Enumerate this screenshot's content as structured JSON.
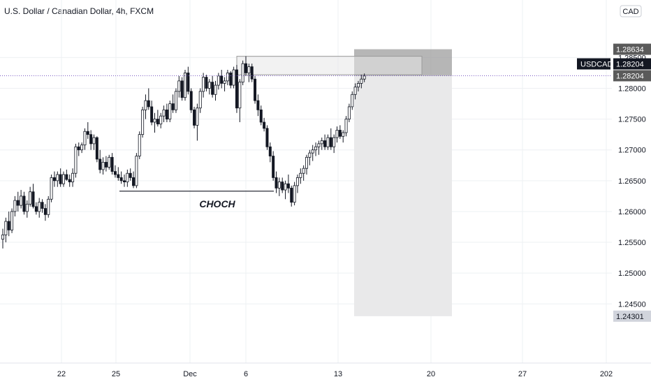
{
  "header": {
    "title": "U.S. Dollar / Canadian Dollar, 4h, FXCM"
  },
  "currency_badge": "CAD",
  "symbol_label": "USDCAD",
  "price_labels": {
    "symbol_price": "1.28204",
    "current": "1.28204",
    "stop": "1.28634",
    "target": "1.24301"
  },
  "colors": {
    "up": "#131722",
    "down": "#131722",
    "upFill": "#ffffff",
    "downFill": "#131722",
    "priceLine": "#7b5cc4",
    "grid": "#eef0f3",
    "stopZone": "#9e9e9e",
    "targetZone": "#e9e9ea",
    "fvgZone": "#e8e8e8"
  },
  "annotation": {
    "label": "CHOCH",
    "price": 1.2633
  },
  "chart_data": {
    "type": "candlestick",
    "title": "U.S. Dollar / Canadian Dollar, 4h, FXCM",
    "symbol": "USDCAD",
    "timeframe": "4h",
    "y_ticks": [
      1.245,
      1.25,
      1.255,
      1.26,
      1.265,
      1.27,
      1.275,
      1.28,
      1.285
    ],
    "y_tick_labels": [
      "1.24500",
      "1.25000",
      "1.25500",
      "1.26000",
      "1.26500",
      "1.27000",
      "1.27500",
      "1.28000",
      "1.28500"
    ],
    "x_ticks": [
      "22",
      "25",
      "Dec",
      "6",
      "13",
      "20",
      "27",
      "202"
    ],
    "ylim": [
      1.2388,
      1.2898
    ],
    "last_price": 1.28204,
    "position": {
      "type": "short",
      "entry": 1.28204,
      "stop": 1.28634,
      "target": 1.24301
    },
    "supply_zone": {
      "top": 1.2852,
      "bottom": 1.2822
    },
    "candles": [
      [
        1.2555,
        1.2572,
        1.254,
        1.2562
      ],
      [
        1.2562,
        1.259,
        1.255,
        1.2584
      ],
      [
        1.2584,
        1.26,
        1.256,
        1.257
      ],
      [
        1.257,
        1.2605,
        1.2565,
        1.26
      ],
      [
        1.26,
        1.2625,
        1.2592,
        1.2618
      ],
      [
        1.2618,
        1.2632,
        1.26,
        1.261
      ],
      [
        1.261,
        1.2635,
        1.2605,
        1.2625
      ],
      [
        1.2625,
        1.2632,
        1.2595,
        1.26
      ],
      [
        1.26,
        1.2618,
        1.259,
        1.2612
      ],
      [
        1.2612,
        1.264,
        1.2608,
        1.2632
      ],
      [
        1.2632,
        1.2645,
        1.2605,
        1.2608
      ],
      [
        1.2608,
        1.2615,
        1.2595,
        1.26
      ],
      [
        1.26,
        1.2622,
        1.259,
        1.2615
      ],
      [
        1.2615,
        1.262,
        1.2598,
        1.2605
      ],
      [
        1.2605,
        1.2612,
        1.2585,
        1.2595
      ],
      [
        1.2595,
        1.2625,
        1.259,
        1.262
      ],
      [
        1.262,
        1.266,
        1.2615,
        1.2655
      ],
      [
        1.2655,
        1.2665,
        1.264,
        1.265
      ],
      [
        1.265,
        1.2665,
        1.264,
        1.266
      ],
      [
        1.266,
        1.267,
        1.264,
        1.2645
      ],
      [
        1.2645,
        1.2665,
        1.264,
        1.266
      ],
      [
        1.266,
        1.2668,
        1.265,
        1.2652
      ],
      [
        1.2652,
        1.266,
        1.264,
        1.2648
      ],
      [
        1.2648,
        1.267,
        1.264,
        1.2662
      ],
      [
        1.2662,
        1.271,
        1.2655,
        1.2705
      ],
      [
        1.2705,
        1.2712,
        1.269,
        1.27
      ],
      [
        1.27,
        1.2712,
        1.2695,
        1.2708
      ],
      [
        1.2708,
        1.2735,
        1.27,
        1.273
      ],
      [
        1.273,
        1.2745,
        1.2718,
        1.2725
      ],
      [
        1.2725,
        1.2732,
        1.27,
        1.271
      ],
      [
        1.271,
        1.2725,
        1.27,
        1.272
      ],
      [
        1.272,
        1.2722,
        1.268,
        1.2685
      ],
      [
        1.2685,
        1.27,
        1.2662,
        1.2668
      ],
      [
        1.2668,
        1.2688,
        1.266,
        1.268
      ],
      [
        1.268,
        1.269,
        1.2665,
        1.2672
      ],
      [
        1.2672,
        1.2692,
        1.2668,
        1.2688
      ],
      [
        1.2688,
        1.2695,
        1.266,
        1.2665
      ],
      [
        1.2665,
        1.2675,
        1.2655,
        1.266
      ],
      [
        1.266,
        1.2672,
        1.265,
        1.2655
      ],
      [
        1.2655,
        1.2665,
        1.2645,
        1.265
      ],
      [
        1.265,
        1.266,
        1.264,
        1.2648
      ],
      [
        1.2648,
        1.2668,
        1.264,
        1.2662
      ],
      [
        1.2662,
        1.267,
        1.265,
        1.2655
      ],
      [
        1.2655,
        1.2665,
        1.2638,
        1.2642
      ],
      [
        1.2642,
        1.2695,
        1.2638,
        1.269
      ],
      [
        1.269,
        1.273,
        1.2685,
        1.2725
      ],
      [
        1.2725,
        1.277,
        1.272,
        1.2765
      ],
      [
        1.2765,
        1.279,
        1.275,
        1.278
      ],
      [
        1.278,
        1.28,
        1.2765,
        1.277
      ],
      [
        1.277,
        1.278,
        1.274,
        1.2745
      ],
      [
        1.2745,
        1.276,
        1.2728,
        1.275
      ],
      [
        1.275,
        1.2765,
        1.2738,
        1.2742
      ],
      [
        1.2742,
        1.276,
        1.2735,
        1.2755
      ],
      [
        1.2755,
        1.2772,
        1.2745,
        1.2765
      ],
      [
        1.2765,
        1.2775,
        1.2745,
        1.275
      ],
      [
        1.275,
        1.278,
        1.2745,
        1.2775
      ],
      [
        1.2775,
        1.279,
        1.276,
        1.2765
      ],
      [
        1.2765,
        1.28,
        1.276,
        1.2795
      ],
      [
        1.2795,
        1.282,
        1.2785,
        1.2812
      ],
      [
        1.2812,
        1.2818,
        1.278,
        1.2785
      ],
      [
        1.2785,
        1.283,
        1.278,
        1.2825
      ],
      [
        1.2825,
        1.2835,
        1.279,
        1.2795
      ],
      [
        1.2795,
        1.28,
        1.276,
        1.2765
      ],
      [
        1.2765,
        1.277,
        1.2735,
        1.274
      ],
      [
        1.274,
        1.2775,
        1.2715,
        1.2768
      ],
      [
        1.2768,
        1.28,
        1.276,
        1.2795
      ],
      [
        1.2795,
        1.2825,
        1.2785,
        1.2818
      ],
      [
        1.2818,
        1.2822,
        1.2795,
        1.28
      ],
      [
        1.28,
        1.2815,
        1.279,
        1.281
      ],
      [
        1.281,
        1.282,
        1.2785,
        1.279
      ],
      [
        1.279,
        1.2812,
        1.278,
        1.2805
      ],
      [
        1.2805,
        1.2825,
        1.2798,
        1.282
      ],
      [
        1.282,
        1.283,
        1.28,
        1.2808
      ],
      [
        1.2808,
        1.2818,
        1.2795,
        1.2812
      ],
      [
        1.2812,
        1.283,
        1.2805,
        1.2825
      ],
      [
        1.2825,
        1.2828,
        1.28,
        1.2805
      ],
      [
        1.2805,
        1.2835,
        1.28,
        1.283
      ],
      [
        1.283,
        1.2838,
        1.276,
        1.2768
      ],
      [
        1.2768,
        1.2815,
        1.2745,
        1.281
      ],
      [
        1.281,
        1.2845,
        1.2805,
        1.284
      ],
      [
        1.284,
        1.2852,
        1.282,
        1.2825
      ],
      [
        1.2825,
        1.284,
        1.281,
        1.2835
      ],
      [
        1.2835,
        1.284,
        1.281,
        1.2815
      ],
      [
        1.2815,
        1.282,
        1.2775,
        1.278
      ],
      [
        1.278,
        1.279,
        1.2755,
        1.2765
      ],
      [
        1.2765,
        1.2772,
        1.274,
        1.2745
      ],
      [
        1.2745,
        1.2752,
        1.273,
        1.2735
      ],
      [
        1.2735,
        1.274,
        1.27,
        1.2705
      ],
      [
        1.2705,
        1.2712,
        1.268,
        1.269
      ],
      [
        1.269,
        1.2698,
        1.265,
        1.2655
      ],
      [
        1.2655,
        1.2665,
        1.263,
        1.2638
      ],
      [
        1.2638,
        1.2655,
        1.2625,
        1.2648
      ],
      [
        1.2648,
        1.2655,
        1.263,
        1.2635
      ],
      [
        1.2635,
        1.265,
        1.262,
        1.2645
      ],
      [
        1.2645,
        1.266,
        1.263,
        1.2638
      ],
      [
        1.2638,
        1.2642,
        1.2608,
        1.2615
      ],
      [
        1.2615,
        1.2648,
        1.261,
        1.2642
      ],
      [
        1.2642,
        1.266,
        1.263,
        1.2655
      ],
      [
        1.2655,
        1.267,
        1.2645,
        1.2662
      ],
      [
        1.2662,
        1.2675,
        1.265,
        1.267
      ],
      [
        1.267,
        1.2692,
        1.266,
        1.2688
      ],
      [
        1.2688,
        1.27,
        1.2675,
        1.2695
      ],
      [
        1.2695,
        1.2708,
        1.2682,
        1.27
      ],
      [
        1.27,
        1.2712,
        1.269,
        1.2705
      ],
      [
        1.2705,
        1.2715,
        1.2692,
        1.271
      ],
      [
        1.271,
        1.272,
        1.27,
        1.2715
      ],
      [
        1.2715,
        1.2725,
        1.27,
        1.2705
      ],
      [
        1.2705,
        1.2725,
        1.27,
        1.272
      ],
      [
        1.272,
        1.2735,
        1.27,
        1.2705
      ],
      [
        1.2705,
        1.2725,
        1.2695,
        1.272
      ],
      [
        1.272,
        1.2738,
        1.2712,
        1.2732
      ],
      [
        1.2732,
        1.274,
        1.2718,
        1.2722
      ],
      [
        1.2722,
        1.2732,
        1.2712,
        1.2728
      ],
      [
        1.2728,
        1.2755,
        1.2722,
        1.275
      ],
      [
        1.275,
        1.2775,
        1.2745,
        1.277
      ],
      [
        1.277,
        1.2795,
        1.2765,
        1.279
      ],
      [
        1.279,
        1.2808,
        1.2782,
        1.2802
      ],
      [
        1.2802,
        1.2812,
        1.2795,
        1.2808
      ],
      [
        1.2808,
        1.2822,
        1.28,
        1.2815
      ],
      [
        1.2815,
        1.2824,
        1.281,
        1.282
      ]
    ]
  }
}
